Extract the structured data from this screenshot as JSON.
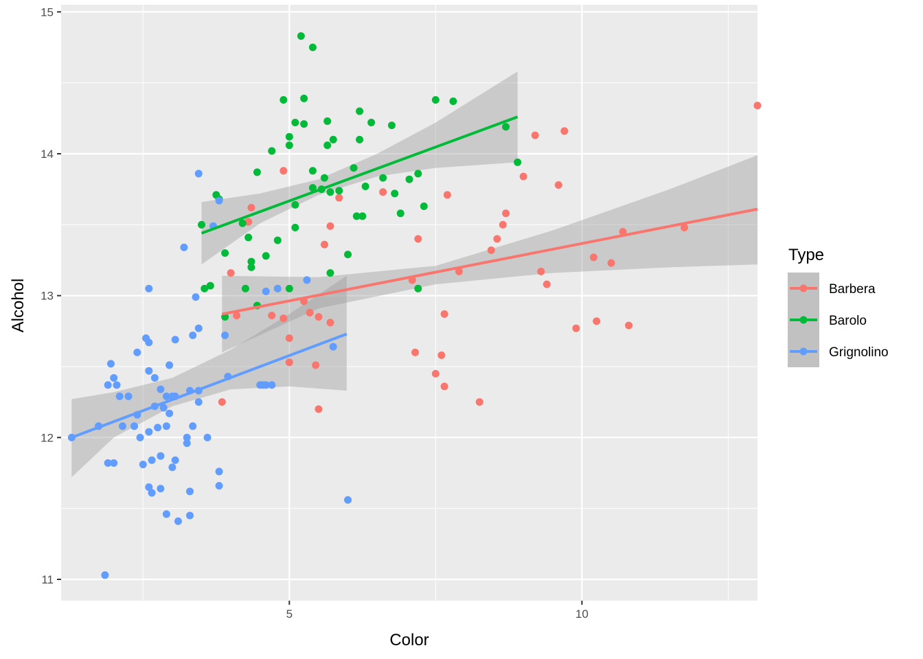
{
  "chart_data": {
    "type": "scatter",
    "title": "",
    "xlabel": "Color",
    "ylabel": "Alcohol",
    "xlim": [
      1.1,
      13.0
    ],
    "ylim": [
      10.85,
      15.05
    ],
    "x_ticks": [
      5,
      10
    ],
    "x_tick_labels": [
      "5",
      "10"
    ],
    "y_ticks": [
      11,
      12,
      13,
      14,
      15
    ],
    "y_tick_labels": [
      "11",
      "12",
      "13",
      "14",
      "15"
    ],
    "grid": true,
    "legend": {
      "title": "Type",
      "position": "right"
    },
    "series": [
      {
        "name": "Barbera",
        "color": "#F8766D",
        "fit": {
          "x": [
            3.85,
            13.0
          ],
          "y": [
            12.87,
            13.61
          ]
        },
        "band": {
          "x": [
            3.85,
            5.5,
            7.5,
            9.5,
            11.5,
            13.0
          ],
          "lower": [
            12.6,
            12.91,
            13.08,
            13.16,
            13.2,
            13.22
          ],
          "upper": [
            13.14,
            13.13,
            13.21,
            13.46,
            13.75,
            13.99
          ]
        },
        "points": [
          [
            4.9,
            13.88
          ],
          [
            4.35,
            13.62
          ],
          [
            4.3,
            13.52
          ],
          [
            4.0,
            13.16
          ],
          [
            4.1,
            12.86
          ],
          [
            4.7,
            12.86
          ],
          [
            3.85,
            12.25
          ],
          [
            4.9,
            12.84
          ],
          [
            5.0,
            12.7
          ],
          [
            5.0,
            12.53
          ],
          [
            5.25,
            12.96
          ],
          [
            5.35,
            12.88
          ],
          [
            5.5,
            12.85
          ],
          [
            5.6,
            13.36
          ],
          [
            5.7,
            13.49
          ],
          [
            5.7,
            12.81
          ],
          [
            5.85,
            13.69
          ],
          [
            5.45,
            12.51
          ],
          [
            5.5,
            12.2
          ],
          [
            6.6,
            13.73
          ],
          [
            7.1,
            13.11
          ],
          [
            7.15,
            12.6
          ],
          [
            7.5,
            12.45
          ],
          [
            7.6,
            12.58
          ],
          [
            7.65,
            12.87
          ],
          [
            7.65,
            12.36
          ],
          [
            7.7,
            13.71
          ],
          [
            7.9,
            13.17
          ],
          [
            7.2,
            13.4
          ],
          [
            8.25,
            12.25
          ],
          [
            8.45,
            13.32
          ],
          [
            8.55,
            13.4
          ],
          [
            8.65,
            13.5
          ],
          [
            8.7,
            13.58
          ],
          [
            9.2,
            14.13
          ],
          [
            9.3,
            13.17
          ],
          [
            9.4,
            13.08
          ],
          [
            9.0,
            13.84
          ],
          [
            9.6,
            13.78
          ],
          [
            9.7,
            14.16
          ],
          [
            9.9,
            12.77
          ],
          [
            10.2,
            13.27
          ],
          [
            10.25,
            12.82
          ],
          [
            10.5,
            13.23
          ],
          [
            10.7,
            13.45
          ],
          [
            10.8,
            12.79
          ],
          [
            11.75,
            13.48
          ],
          [
            13.0,
            14.34
          ]
        ]
      },
      {
        "name": "Barolo",
        "color": "#00BA38",
        "fit": {
          "x": [
            3.5,
            8.9
          ],
          "y": [
            13.44,
            14.26
          ]
        },
        "band": {
          "x": [
            3.5,
            4.5,
            5.5,
            6.5,
            7.5,
            8.9
          ],
          "lower": [
            13.22,
            13.51,
            13.71,
            13.84,
            13.9,
            13.94
          ],
          "upper": [
            13.66,
            13.72,
            13.82,
            14.0,
            14.22,
            14.58
          ]
        },
        "points": [
          [
            3.5,
            13.5
          ],
          [
            3.55,
            13.05
          ],
          [
            3.65,
            13.07
          ],
          [
            3.75,
            13.71
          ],
          [
            3.8,
            13.68
          ],
          [
            3.9,
            13.3
          ],
          [
            3.9,
            12.85
          ],
          [
            4.2,
            13.51
          ],
          [
            4.25,
            13.05
          ],
          [
            4.3,
            13.41
          ],
          [
            4.35,
            13.24
          ],
          [
            4.35,
            13.2
          ],
          [
            4.45,
            13.87
          ],
          [
            4.45,
            12.93
          ],
          [
            4.6,
            13.28
          ],
          [
            4.7,
            14.02
          ],
          [
            4.8,
            13.39
          ],
          [
            4.9,
            14.38
          ],
          [
            5.0,
            14.12
          ],
          [
            5.0,
            14.06
          ],
          [
            5.1,
            14.22
          ],
          [
            5.1,
            13.64
          ],
          [
            5.1,
            13.48
          ],
          [
            5.0,
            13.05
          ],
          [
            5.2,
            14.83
          ],
          [
            5.25,
            14.21
          ],
          [
            5.25,
            14.39
          ],
          [
            5.4,
            14.75
          ],
          [
            5.4,
            13.88
          ],
          [
            5.4,
            13.76
          ],
          [
            5.55,
            13.75
          ],
          [
            5.6,
            13.83
          ],
          [
            5.65,
            14.23
          ],
          [
            5.65,
            14.06
          ],
          [
            5.7,
            13.73
          ],
          [
            5.7,
            13.16
          ],
          [
            5.75,
            14.1
          ],
          [
            5.85,
            13.74
          ],
          [
            6.0,
            13.29
          ],
          [
            6.1,
            13.9
          ],
          [
            6.15,
            13.56
          ],
          [
            6.2,
            14.3
          ],
          [
            6.2,
            14.1
          ],
          [
            6.25,
            13.56
          ],
          [
            6.3,
            13.77
          ],
          [
            6.4,
            14.22
          ],
          [
            6.6,
            13.83
          ],
          [
            6.75,
            14.2
          ],
          [
            6.8,
            13.72
          ],
          [
            6.9,
            13.58
          ],
          [
            7.05,
            13.82
          ],
          [
            7.2,
            13.86
          ],
          [
            7.2,
            13.05
          ],
          [
            7.3,
            13.63
          ],
          [
            7.5,
            14.38
          ],
          [
            7.8,
            14.37
          ],
          [
            8.7,
            14.19
          ],
          [
            8.9,
            13.94
          ]
        ]
      },
      {
        "name": "Grignolino",
        "color": "#619CFF",
        "fit": {
          "x": [
            1.28,
            5.98
          ],
          "y": [
            12.0,
            12.73
          ]
        },
        "band": {
          "x": [
            1.28,
            2.0,
            3.0,
            4.0,
            5.0,
            5.98
          ],
          "lower": [
            11.72,
            12.0,
            12.22,
            12.34,
            12.36,
            12.33
          ],
          "upper": [
            12.27,
            12.32,
            12.42,
            12.62,
            12.87,
            13.14
          ]
        },
        "points": [
          [
            1.28,
            12.0
          ],
          [
            1.74,
            12.08
          ],
          [
            1.9,
            12.37
          ],
          [
            1.95,
            12.52
          ],
          [
            2.0,
            12.42
          ],
          [
            2.05,
            12.37
          ],
          [
            2.1,
            12.29
          ],
          [
            2.15,
            12.08
          ],
          [
            2.25,
            12.29
          ],
          [
            2.35,
            12.08
          ],
          [
            2.4,
            12.16
          ],
          [
            2.4,
            12.6
          ],
          [
            2.45,
            12.0
          ],
          [
            2.5,
            11.81
          ],
          [
            2.55,
            12.7
          ],
          [
            2.6,
            12.67
          ],
          [
            2.6,
            12.47
          ],
          [
            2.6,
            12.04
          ],
          [
            2.6,
            11.65
          ],
          [
            2.65,
            11.84
          ],
          [
            2.65,
            11.61
          ],
          [
            2.7,
            12.42
          ],
          [
            2.7,
            12.22
          ],
          [
            2.75,
            12.07
          ],
          [
            2.8,
            12.34
          ],
          [
            2.8,
            11.87
          ],
          [
            2.8,
            11.64
          ],
          [
            2.85,
            12.21
          ],
          [
            2.9,
            12.29
          ],
          [
            2.9,
            12.08
          ],
          [
            2.9,
            11.46
          ],
          [
            2.95,
            12.51
          ],
          [
            2.95,
            12.17
          ],
          [
            3.0,
            12.29
          ],
          [
            3.0,
            11.79
          ],
          [
            3.05,
            12.69
          ],
          [
            3.05,
            12.29
          ],
          [
            3.05,
            11.84
          ],
          [
            3.1,
            11.41
          ],
          [
            3.2,
            13.34
          ],
          [
            3.25,
            12.0
          ],
          [
            3.25,
            11.96
          ],
          [
            3.3,
            12.33
          ],
          [
            3.3,
            11.62
          ],
          [
            3.3,
            11.45
          ],
          [
            3.35,
            12.72
          ],
          [
            3.35,
            12.08
          ],
          [
            3.4,
            12.99
          ],
          [
            3.45,
            12.77
          ],
          [
            3.45,
            12.25
          ],
          [
            3.45,
            12.33
          ],
          [
            3.45,
            13.86
          ],
          [
            3.6,
            12.0
          ],
          [
            3.7,
            13.49
          ],
          [
            3.8,
            11.76
          ],
          [
            3.8,
            11.66
          ],
          [
            3.8,
            13.67
          ],
          [
            3.9,
            12.72
          ],
          [
            3.95,
            12.43
          ],
          [
            2.6,
            13.05
          ],
          [
            4.5,
            12.37
          ],
          [
            4.55,
            12.37
          ],
          [
            4.6,
            12.37
          ],
          [
            4.6,
            13.03
          ],
          [
            4.7,
            12.37
          ],
          [
            4.8,
            13.05
          ],
          [
            5.3,
            13.11
          ],
          [
            5.75,
            12.64
          ],
          [
            6.0,
            11.56
          ],
          [
            1.9,
            11.82
          ],
          [
            2.0,
            11.82
          ],
          [
            1.85,
            11.03
          ]
        ]
      }
    ]
  }
}
